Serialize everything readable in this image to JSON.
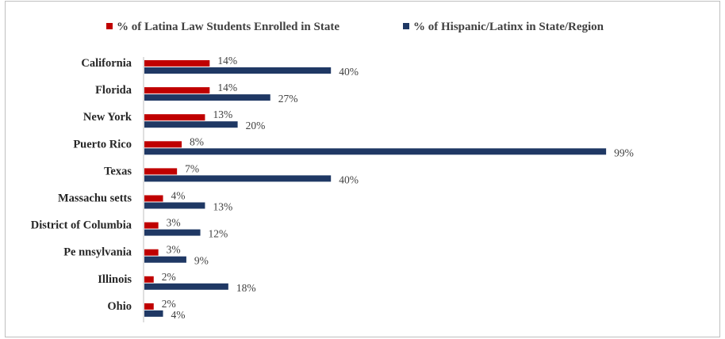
{
  "chart_data": {
    "type": "bar",
    "orientation": "horizontal",
    "categories": [
      "California",
      "Florida",
      "New York",
      "Puerto Rico",
      "Texas",
      "Massachu setts",
      "District of Columbia",
      "Pe nnsylvania",
      "Illinois",
      "Ohio"
    ],
    "series": [
      {
        "name": "% of Latina Law Students Enrolled in State",
        "color": "#c00000",
        "values": [
          14,
          14,
          13,
          8,
          7,
          4,
          3,
          3,
          2,
          2
        ],
        "labels": [
          "14%",
          "14%",
          "13%",
          "8%",
          "7%",
          "4%",
          "3%",
          "3%",
          "2%",
          "2%"
        ]
      },
      {
        "name": "% of Hispanic/Latinx in State/Region",
        "color": "#1f3864",
        "values": [
          40,
          27,
          20,
          99,
          40,
          13,
          12,
          9,
          18,
          4
        ],
        "labels": [
          "40%",
          "27%",
          "20%",
          "99%",
          "40%",
          "13%",
          "12%",
          "9%",
          "18%",
          "4%"
        ]
      }
    ],
    "xlim": [
      0,
      100
    ],
    "grid": false,
    "legend_position": "top"
  }
}
